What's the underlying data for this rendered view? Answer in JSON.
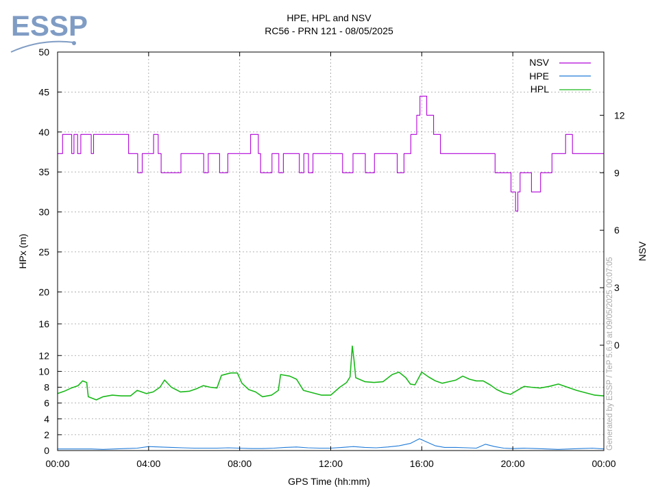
{
  "logo": {
    "text": "ESSP",
    "color": "#7f9cc4"
  },
  "chart_data": {
    "type": "line",
    "title": "HPE, HPL and NSV",
    "subtitle": "RC56 - PRN 121 - 08/05/2025",
    "xlabel": "GPS Time (hh:mm)",
    "ylabel": "HPx (m)",
    "y2label": "NSV",
    "watermark": "Generated by ESSP / TeP 5.6.9 at 09/05/2025 00:07:05",
    "grid": true,
    "legend_position": "top-right",
    "x_ticks": [
      {
        "h": 0,
        "label": "00:00"
      },
      {
        "h": 4,
        "label": "04:00"
      },
      {
        "h": 8,
        "label": "08:00"
      },
      {
        "h": 12,
        "label": "12:00"
      },
      {
        "h": 16,
        "label": "16:00"
      },
      {
        "h": 20,
        "label": "20:00"
      },
      {
        "h": 24,
        "label": "00:00"
      }
    ],
    "xlim_hours": [
      0,
      24
    ],
    "y_axis": {
      "scale": "piecewise-linear",
      "segments": [
        [
          0,
          16
        ],
        [
          16,
          50
        ]
      ],
      "ticks": [
        0,
        2,
        4,
        6,
        8,
        10,
        12,
        16,
        20,
        25,
        30,
        35,
        40,
        45,
        50
      ]
    },
    "y2_axis": {
      "ticks": [
        0,
        3,
        6,
        9,
        12
      ],
      "ylim": [
        -5.5,
        15.3
      ]
    },
    "series": [
      {
        "name": "NSV",
        "axis": "y2",
        "color": "#b000d8",
        "step": true,
        "points": [
          [
            0.0,
            10
          ],
          [
            0.22,
            11
          ],
          [
            0.62,
            10
          ],
          [
            0.72,
            11
          ],
          [
            0.88,
            10
          ],
          [
            1.02,
            11
          ],
          [
            1.48,
            10
          ],
          [
            1.58,
            11
          ],
          [
            1.98,
            11
          ],
          [
            2.52,
            11
          ],
          [
            3.12,
            10
          ],
          [
            3.52,
            9
          ],
          [
            3.72,
            10
          ],
          [
            3.98,
            10
          ],
          [
            4.22,
            11
          ],
          [
            4.42,
            10
          ],
          [
            4.55,
            9
          ],
          [
            5.22,
            9
          ],
          [
            5.32,
            9
          ],
          [
            5.42,
            10
          ],
          [
            6.12,
            10
          ],
          [
            6.42,
            9
          ],
          [
            6.62,
            10
          ],
          [
            6.92,
            10
          ],
          [
            7.12,
            9
          ],
          [
            7.48,
            10
          ],
          [
            8.02,
            10
          ],
          [
            8.48,
            11
          ],
          [
            8.82,
            10
          ],
          [
            8.92,
            9
          ],
          [
            9.42,
            10
          ],
          [
            9.72,
            9
          ],
          [
            9.92,
            10
          ],
          [
            10.22,
            10
          ],
          [
            10.62,
            9
          ],
          [
            10.82,
            10
          ],
          [
            11.02,
            9
          ],
          [
            11.22,
            10
          ],
          [
            12.02,
            10
          ],
          [
            12.52,
            9
          ],
          [
            12.98,
            10
          ],
          [
            13.32,
            10
          ],
          [
            13.52,
            9
          ],
          [
            13.92,
            10
          ],
          [
            14.02,
            10
          ],
          [
            14.72,
            10
          ],
          [
            14.92,
            9
          ],
          [
            15.22,
            10
          ],
          [
            15.52,
            11
          ],
          [
            15.78,
            12
          ],
          [
            15.92,
            13
          ],
          [
            16.22,
            12
          ],
          [
            16.52,
            11
          ],
          [
            16.82,
            10
          ],
          [
            17.32,
            10
          ],
          [
            17.72,
            10
          ],
          [
            18.02,
            10
          ],
          [
            18.22,
            10
          ],
          [
            18.52,
            10
          ],
          [
            19.02,
            10
          ],
          [
            19.22,
            9
          ],
          [
            19.52,
            9
          ],
          [
            19.92,
            8
          ],
          [
            20.12,
            7
          ],
          [
            20.22,
            8
          ],
          [
            20.32,
            9
          ],
          [
            20.52,
            9
          ],
          [
            20.82,
            8
          ],
          [
            21.22,
            9
          ],
          [
            21.72,
            10
          ],
          [
            22.02,
            10
          ],
          [
            22.32,
            11
          ],
          [
            22.62,
            10
          ],
          [
            22.82,
            10
          ],
          [
            23.22,
            10
          ],
          [
            23.62,
            10
          ],
          [
            24.0,
            10
          ]
        ]
      },
      {
        "name": "HPE",
        "axis": "y1",
        "color": "#1f7ad8",
        "step": false,
        "points": [
          [
            0.0,
            0.2
          ],
          [
            0.5,
            0.2
          ],
          [
            1.0,
            0.2
          ],
          [
            1.5,
            0.2
          ],
          [
            2.0,
            0.15
          ],
          [
            2.5,
            0.2
          ],
          [
            3.0,
            0.25
          ],
          [
            3.5,
            0.3
          ],
          [
            4.0,
            0.5
          ],
          [
            4.5,
            0.45
          ],
          [
            5.0,
            0.4
          ],
          [
            5.5,
            0.35
          ],
          [
            6.0,
            0.3
          ],
          [
            6.5,
            0.3
          ],
          [
            7.0,
            0.3
          ],
          [
            7.5,
            0.35
          ],
          [
            8.0,
            0.3
          ],
          [
            8.5,
            0.25
          ],
          [
            9.0,
            0.25
          ],
          [
            9.5,
            0.3
          ],
          [
            10.0,
            0.4
          ],
          [
            10.5,
            0.45
          ],
          [
            11.0,
            0.35
          ],
          [
            11.5,
            0.3
          ],
          [
            12.0,
            0.3
          ],
          [
            12.5,
            0.4
          ],
          [
            13.0,
            0.5
          ],
          [
            13.5,
            0.4
          ],
          [
            14.0,
            0.35
          ],
          [
            14.5,
            0.45
          ],
          [
            15.0,
            0.6
          ],
          [
            15.5,
            0.9
          ],
          [
            15.9,
            1.5
          ],
          [
            16.2,
            1.1
          ],
          [
            16.6,
            0.6
          ],
          [
            17.0,
            0.4
          ],
          [
            17.5,
            0.4
          ],
          [
            18.0,
            0.35
          ],
          [
            18.4,
            0.3
          ],
          [
            18.8,
            0.8
          ],
          [
            19.2,
            0.5
          ],
          [
            19.6,
            0.3
          ],
          [
            20.0,
            0.25
          ],
          [
            20.5,
            0.3
          ],
          [
            21.0,
            0.25
          ],
          [
            21.5,
            0.2
          ],
          [
            22.0,
            0.15
          ],
          [
            22.5,
            0.2
          ],
          [
            23.0,
            0.25
          ],
          [
            23.5,
            0.3
          ],
          [
            24.0,
            0.2
          ]
        ]
      },
      {
        "name": "HPL",
        "axis": "y1",
        "color": "#18b818",
        "step": false,
        "points": [
          [
            0.0,
            7.2
          ],
          [
            0.3,
            7.5
          ],
          [
            0.6,
            7.9
          ],
          [
            0.9,
            8.2
          ],
          [
            1.1,
            8.8
          ],
          [
            1.28,
            8.6
          ],
          [
            1.35,
            6.8
          ],
          [
            1.7,
            6.4
          ],
          [
            2.0,
            6.8
          ],
          [
            2.4,
            7.0
          ],
          [
            2.8,
            6.9
          ],
          [
            3.2,
            6.9
          ],
          [
            3.5,
            7.6
          ],
          [
            3.9,
            7.2
          ],
          [
            4.2,
            7.4
          ],
          [
            4.5,
            8.0
          ],
          [
            4.7,
            8.9
          ],
          [
            5.0,
            8.0
          ],
          [
            5.4,
            7.4
          ],
          [
            5.8,
            7.5
          ],
          [
            6.1,
            7.8
          ],
          [
            6.4,
            8.2
          ],
          [
            6.7,
            8.0
          ],
          [
            7.0,
            7.9
          ],
          [
            7.2,
            9.5
          ],
          [
            7.6,
            9.8
          ],
          [
            7.9,
            9.8
          ],
          [
            8.1,
            8.5
          ],
          [
            8.4,
            7.7
          ],
          [
            8.7,
            7.4
          ],
          [
            9.0,
            6.8
          ],
          [
            9.4,
            7.0
          ],
          [
            9.7,
            7.6
          ],
          [
            9.8,
            9.6
          ],
          [
            10.2,
            9.4
          ],
          [
            10.5,
            9.0
          ],
          [
            10.8,
            7.6
          ],
          [
            11.2,
            7.3
          ],
          [
            11.6,
            7.0
          ],
          [
            12.0,
            7.0
          ],
          [
            12.4,
            8.0
          ],
          [
            12.7,
            8.6
          ],
          [
            12.85,
            9.3
          ],
          [
            12.95,
            13.2
          ],
          [
            13.02,
            11.5
          ],
          [
            13.1,
            9.2
          ],
          [
            13.5,
            8.7
          ],
          [
            13.9,
            8.6
          ],
          [
            14.3,
            8.7
          ],
          [
            14.7,
            9.6
          ],
          [
            15.0,
            9.9
          ],
          [
            15.3,
            9.2
          ],
          [
            15.5,
            8.4
          ],
          [
            15.7,
            8.3
          ],
          [
            16.0,
            9.9
          ],
          [
            16.3,
            9.3
          ],
          [
            16.6,
            8.8
          ],
          [
            16.9,
            8.5
          ],
          [
            17.2,
            8.7
          ],
          [
            17.5,
            8.9
          ],
          [
            17.8,
            9.4
          ],
          [
            18.1,
            9.0
          ],
          [
            18.4,
            8.8
          ],
          [
            18.7,
            8.8
          ],
          [
            19.0,
            8.3
          ],
          [
            19.3,
            7.7
          ],
          [
            19.6,
            7.3
          ],
          [
            19.9,
            7.1
          ],
          [
            20.2,
            7.6
          ],
          [
            20.5,
            8.1
          ],
          [
            20.8,
            8.0
          ],
          [
            21.2,
            7.9
          ],
          [
            21.6,
            8.1
          ],
          [
            22.0,
            8.4
          ],
          [
            22.4,
            8.0
          ],
          [
            22.8,
            7.6
          ],
          [
            23.2,
            7.3
          ],
          [
            23.6,
            7.0
          ],
          [
            24.0,
            6.9
          ]
        ]
      }
    ]
  }
}
